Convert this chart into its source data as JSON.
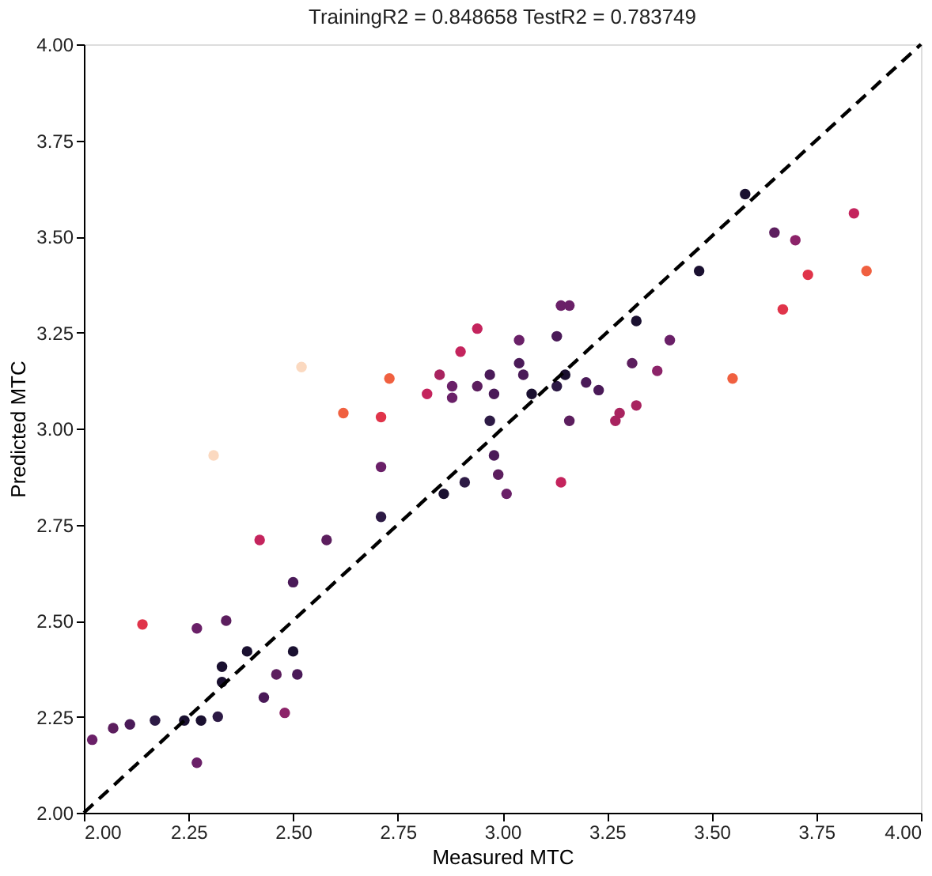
{
  "chart_data": {
    "type": "scatter",
    "title": "TrainingR2 = 0.848658 TestR2 = 0.783749",
    "xlabel": "Measured MTC",
    "ylabel": "Predicted MTC",
    "xlim": [
      2,
      4
    ],
    "ylim": [
      2,
      4
    ],
    "xticks": [
      {
        "value": 2,
        "label": "2.00"
      },
      {
        "value": 2.25,
        "label": "2.25"
      },
      {
        "value": 2.5,
        "label": "2.50"
      },
      {
        "value": 2.75,
        "label": "2.75"
      },
      {
        "value": 3,
        "label": "3.00"
      },
      {
        "value": 3.25,
        "label": "3.25"
      },
      {
        "value": 3.5,
        "label": "3.50"
      },
      {
        "value": 3.75,
        "label": "3.75"
      },
      {
        "value": 4,
        "label": "4.00"
      }
    ],
    "yticks": [
      {
        "value": 2,
        "label": "2.00"
      },
      {
        "value": 2.25,
        "label": "2.25"
      },
      {
        "value": 2.5,
        "label": "2.50"
      },
      {
        "value": 2.75,
        "label": "2.75"
      },
      {
        "value": 3,
        "label": "3.00"
      },
      {
        "value": 3.25,
        "label": "3.25"
      },
      {
        "value": 3.5,
        "label": "3.50"
      },
      {
        "value": 3.75,
        "label": "3.75"
      },
      {
        "value": 4,
        "label": "4.00"
      }
    ],
    "grid": false,
    "marker": "circle",
    "series": [
      {
        "x": [
          2.02,
          2.07,
          2.11,
          2.17,
          2.24,
          2.28,
          2.32,
          2.27,
          2.14,
          2.27,
          2.34,
          2.33,
          2.33,
          2.39,
          2.46,
          2.43,
          2.48,
          2.5,
          2.51,
          2.42,
          2.5,
          2.58,
          2.71,
          2.71,
          2.71,
          2.62,
          2.73,
          2.31,
          2.52,
          2.82,
          2.85,
          2.88,
          2.88,
          2.9,
          2.94,
          2.94,
          2.97,
          2.98,
          2.97,
          2.98,
          2.99,
          3.01,
          2.86,
          2.91,
          3.04,
          3.04,
          3.05,
          3.07,
          3.13,
          3.14,
          3.16,
          3.13,
          3.15,
          3.16,
          3.14,
          3.2,
          3.23,
          3.27,
          3.28,
          3.32,
          3.32,
          3.31,
          3.58,
          3.84,
          3.65,
          3.7,
          3.73,
          3.87,
          3.67,
          3.47,
          3.4,
          3.37,
          3.55
        ],
        "values": [
          2.19,
          2.22,
          2.23,
          2.24,
          2.24,
          2.24,
          2.25,
          2.13,
          2.49,
          2.48,
          2.5,
          2.38,
          2.34,
          2.42,
          2.36,
          2.3,
          2.26,
          2.42,
          2.36,
          2.71,
          2.6,
          2.71,
          2.77,
          2.9,
          3.03,
          3.04,
          3.13,
          2.93,
          3.16,
          3.09,
          3.14,
          3.11,
          3.08,
          3.2,
          3.26,
          3.11,
          3.14,
          3.09,
          3.02,
          2.93,
          2.88,
          2.83,
          2.83,
          2.86,
          3.23,
          3.17,
          3.14,
          3.09,
          3.24,
          3.32,
          3.32,
          3.11,
          3.14,
          3.02,
          2.86,
          3.12,
          3.1,
          3.02,
          3.04,
          3.06,
          3.28,
          3.17,
          3.61,
          3.56,
          3.51,
          3.49,
          3.4,
          3.41,
          3.31,
          3.41,
          3.23,
          3.15,
          3.13
        ],
        "colors": [
          "#6a2068",
          "#5c1e5e",
          "#4a1a58",
          "#2d1a45",
          "#1a1030",
          "#1a1030",
          "#2d1a45",
          "#6a2068",
          "#e0344a",
          "#6a2068",
          "#5c1e5e",
          "#1a1030",
          "#1a1030",
          "#1a1030",
          "#5c1e5e",
          "#4a1a58",
          "#8c2369",
          "#1a1030",
          "#4a1a58",
          "#c4245d",
          "#4a1a58",
          "#5c1e5e",
          "#2d1a45",
          "#6a2068",
          "#e0344a",
          "#f06040",
          "#f06040",
          "#fbd9c0",
          "#fbd9c0",
          "#c4245d",
          "#a8235f",
          "#6a2068",
          "#6a2068",
          "#c4245d",
          "#c4245d",
          "#5c1e5e",
          "#4a1a58",
          "#4a1a58",
          "#2d1a45",
          "#4a1a58",
          "#5c1e5e",
          "#6a2068",
          "#1a1030",
          "#2d1a45",
          "#6a2068",
          "#4a1a58",
          "#4a1a58",
          "#1a1030",
          "#4a1a58",
          "#6a2068",
          "#6a2068",
          "#2d1a45",
          "#1a1030",
          "#5c1e5e",
          "#c4245d",
          "#4a1a58",
          "#4a1a58",
          "#a8235f",
          "#a8235f",
          "#a8235f",
          "#1a1030",
          "#5c1e5e",
          "#1a1030",
          "#c4245d",
          "#5c1e5e",
          "#8c2369",
          "#e0344a",
          "#f06040",
          "#e0344a",
          "#1a1030",
          "#6a2068",
          "#8c2369",
          "#f06040"
        ]
      },
      {
        "type": "line",
        "x": [
          2,
          4
        ],
        "values": [
          2,
          4
        ],
        "color": "#000000",
        "line_style": "dashed",
        "marker": "none"
      }
    ]
  }
}
